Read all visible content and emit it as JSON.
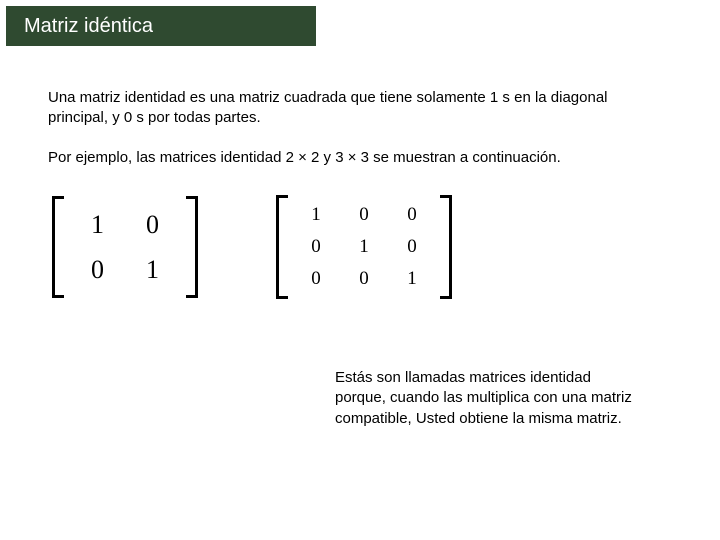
{
  "header": {
    "title": "Matriz idéntica",
    "bg": "#2f4a30",
    "fg": "#ffffff"
  },
  "paragraphs": {
    "definition": "Una matriz identidad es una matriz cuadrada que tiene solamente 1 s en la diagonal principal, y 0 s por todas partes.",
    "example_intro": "Por ejemplo, las matrices identidad 2 × 2 y 3 × 3 se muestran a continuación."
  },
  "matrices": {
    "m2": {
      "rows": 2,
      "cols": 2,
      "cells": [
        "1",
        "0",
        "0",
        "1"
      ],
      "font_family": "Times New Roman",
      "cell_fontsize": 26,
      "bracket_color": "#000000"
    },
    "m3": {
      "rows": 3,
      "cols": 3,
      "cells": [
        "1",
        "0",
        "0",
        "0",
        "1",
        "0",
        "0",
        "0",
        "1"
      ],
      "font_family": "Times New Roman",
      "cell_fontsize": 19,
      "bracket_color": "#000000"
    }
  },
  "footer": {
    "text": "Estás son llamadas matrices identidad porque, cuando las multiplica con una matriz compatible, Usted obtiene la misma matriz."
  },
  "colors": {
    "page_bg": "#ffffff",
    "text": "#000000"
  }
}
